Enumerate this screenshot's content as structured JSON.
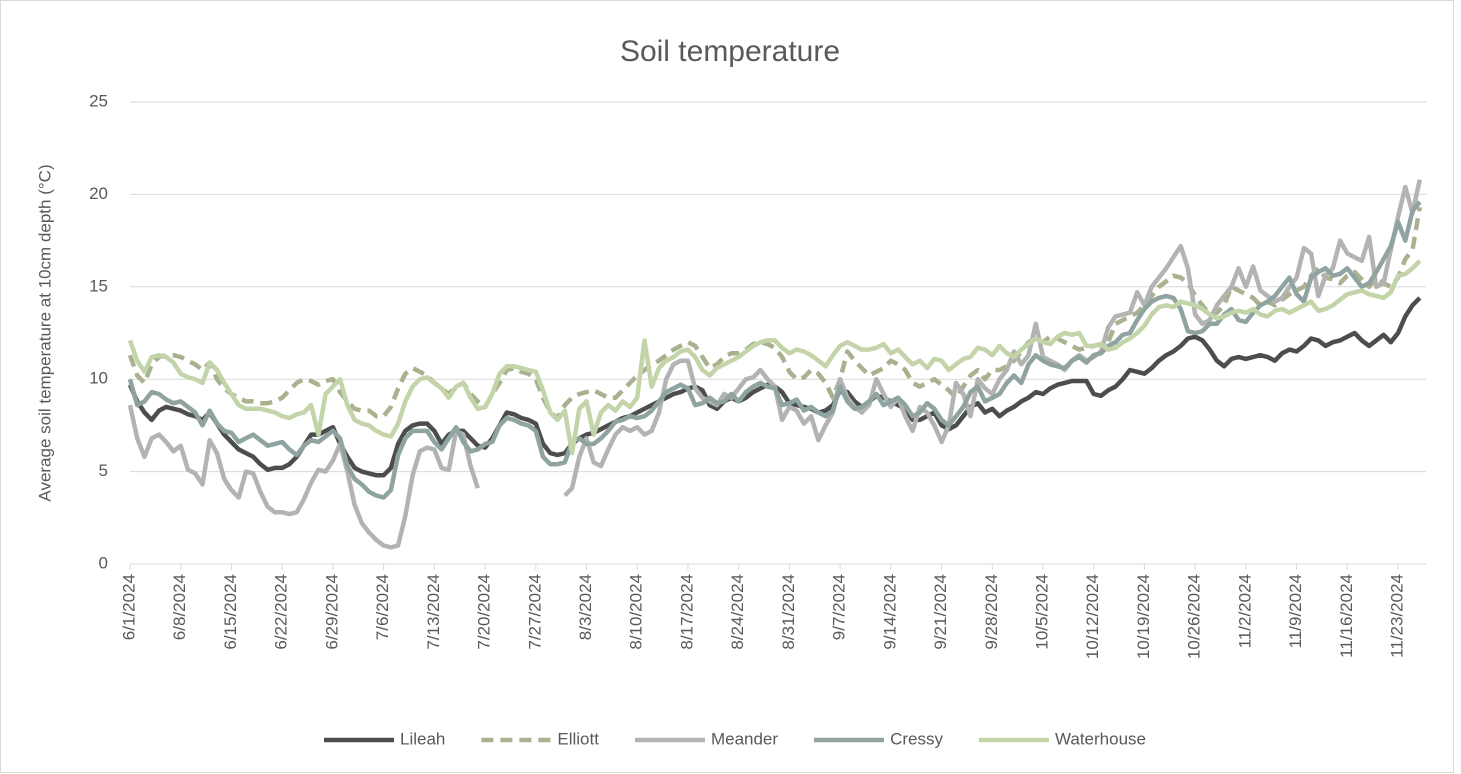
{
  "chart_data": {
    "type": "line",
    "title": "Soil temperature",
    "y_label": "Average soil temperature at 10cm depth (°C)",
    "ylim": [
      0,
      25
    ],
    "yticks": [
      0,
      5,
      10,
      15,
      20,
      25
    ],
    "grid": true,
    "legend": "bottom",
    "categories": [
      "6/1/2024",
      null,
      null,
      null,
      null,
      null,
      null,
      "6/8/2024",
      null,
      null,
      null,
      null,
      null,
      null,
      "6/15/2024",
      null,
      null,
      null,
      null,
      null,
      null,
      "6/22/2024",
      null,
      null,
      null,
      null,
      null,
      null,
      "6/29/2024",
      null,
      null,
      null,
      null,
      null,
      null,
      "7/6/2024",
      null,
      null,
      null,
      null,
      null,
      null,
      "7/13/2024",
      null,
      null,
      null,
      null,
      null,
      null,
      "7/20/2024",
      null,
      null,
      null,
      null,
      null,
      null,
      "7/27/2024",
      null,
      null,
      null,
      null,
      null,
      null,
      "8/3/2024",
      null,
      null,
      null,
      null,
      null,
      null,
      "8/10/2024",
      null,
      null,
      null,
      null,
      null,
      null,
      "8/17/2024",
      null,
      null,
      null,
      null,
      null,
      null,
      "8/24/2024",
      null,
      null,
      null,
      null,
      null,
      null,
      "8/31/2024",
      null,
      null,
      null,
      null,
      null,
      null,
      "9/7/2024",
      null,
      null,
      null,
      null,
      null,
      null,
      "9/14/2024",
      null,
      null,
      null,
      null,
      null,
      null,
      "9/21/2024",
      null,
      null,
      null,
      null,
      null,
      null,
      "9/28/2024",
      null,
      null,
      null,
      null,
      null,
      null,
      "10/5/2024",
      null,
      null,
      null,
      null,
      null,
      null,
      "10/12/2024",
      null,
      null,
      null,
      null,
      null,
      null,
      "10/19/2024",
      null,
      null,
      null,
      null,
      null,
      null,
      "10/26/2024",
      null,
      null,
      null,
      null,
      null,
      null,
      "11/2/2024",
      null,
      null,
      null,
      null,
      null,
      null,
      "11/9/2024",
      null,
      null,
      null,
      null,
      null,
      null,
      "11/16/2024",
      null,
      null,
      null,
      null,
      null,
      null,
      "11/23/2024",
      null,
      null,
      null
    ],
    "series": [
      {
        "name": "Lileah",
        "color": "#4d4d4d",
        "dashed": false,
        "values": [
          9.7,
          8.8,
          8.2,
          7.8,
          8.3,
          8.5,
          8.4,
          8.3,
          8.1,
          8.0,
          7.8,
          8.2,
          7.6,
          7.0,
          6.6,
          6.2,
          6.0,
          5.8,
          5.4,
          5.1,
          5.2,
          5.2,
          5.4,
          5.8,
          6.4,
          7.0,
          7.0,
          7.2,
          7.4,
          6.5,
          5.8,
          5.2,
          5.0,
          4.9,
          4.8,
          4.8,
          5.2,
          6.5,
          7.2,
          7.5,
          7.6,
          7.6,
          7.2,
          6.5,
          7.0,
          7.2,
          7.2,
          6.8,
          6.4,
          6.3,
          6.8,
          7.5,
          8.2,
          8.1,
          7.9,
          7.8,
          7.6,
          6.5,
          6.0,
          5.9,
          6.0,
          6.5,
          6.8,
          7.0,
          7.1,
          7.3,
          7.5,
          7.7,
          7.9,
          8.0,
          8.2,
          8.4,
          8.6,
          8.8,
          9.0,
          9.2,
          9.3,
          9.5,
          9.6,
          9.4,
          8.6,
          8.4,
          8.8,
          9.0,
          8.8,
          9.0,
          9.3,
          9.5,
          9.7,
          9.6,
          9.3,
          8.7,
          8.6,
          8.5,
          8.4,
          8.2,
          8.3,
          8.6,
          9.4,
          9.3,
          8.8,
          8.5,
          8.8,
          9.1,
          9.0,
          8.8,
          8.6,
          8.4,
          7.8,
          7.8,
          8.0,
          8.2,
          7.5,
          7.3,
          7.5,
          8.0,
          8.5,
          8.7,
          8.2,
          8.4,
          8.0,
          8.3,
          8.5,
          8.8,
          9.0,
          9.3,
          9.2,
          9.5,
          9.7,
          9.8,
          9.9,
          9.9,
          9.9,
          9.2,
          9.1,
          9.4,
          9.6,
          10.0,
          10.5,
          10.4,
          10.3,
          10.6,
          11.0,
          11.3,
          11.5,
          11.8,
          12.2,
          12.3,
          12.1,
          11.6,
          11.0,
          10.7,
          11.1,
          11.2,
          11.1,
          11.2,
          11.3,
          11.2,
          11.0,
          11.4,
          11.6,
          11.5,
          11.8,
          12.2,
          12.1,
          11.8,
          12.0,
          12.1,
          12.3,
          12.5,
          12.1,
          11.8,
          12.1,
          12.4,
          12.0,
          12.5,
          13.4,
          14.0,
          14.4
        ]
      },
      {
        "name": "Elliott",
        "color": "#a9b18f",
        "dashed": true,
        "values": [
          11.3,
          10.2,
          9.8,
          10.8,
          11.2,
          11.3,
          11.3,
          11.2,
          11.0,
          10.8,
          10.5,
          10.9,
          10.0,
          9.5,
          9.2,
          9.0,
          8.8,
          8.8,
          8.7,
          8.7,
          8.8,
          9.0,
          9.4,
          9.8,
          10.0,
          9.9,
          9.7,
          9.9,
          10.0,
          9.3,
          8.8,
          8.4,
          8.3,
          8.3,
          8.0,
          8.0,
          8.5,
          9.5,
          10.3,
          10.6,
          10.4,
          10.2,
          9.8,
          9.5,
          9.2,
          9.6,
          9.8,
          9.2,
          8.8,
          8.5,
          9.2,
          9.8,
          10.5,
          10.6,
          10.4,
          10.3,
          10.0,
          9.0,
          8.2,
          7.9,
          8.6,
          9.0,
          9.2,
          9.3,
          9.4,
          9.2,
          9.0,
          9.0,
          9.4,
          9.8,
          10.2,
          10.5,
          10.8,
          11.0,
          11.3,
          11.6,
          11.8,
          12.0,
          11.8,
          11.2,
          10.6,
          10.8,
          11.2,
          11.4,
          11.4,
          11.6,
          11.9,
          12.0,
          11.9,
          11.7,
          11.2,
          10.4,
          10.0,
          10.1,
          10.5,
          10.3,
          9.8,
          9.0,
          10.0,
          11.5,
          11.0,
          10.6,
          10.2,
          10.4,
          10.6,
          11.0,
          10.8,
          10.5,
          9.8,
          9.6,
          9.8,
          10.0,
          9.7,
          9.4,
          9.0,
          9.6,
          10.2,
          10.5,
          10.0,
          10.5,
          10.5,
          10.7,
          11.0,
          11.5,
          12.0,
          12.2,
          12.0,
          12.3,
          12.2,
          12.0,
          11.8,
          11.6,
          11.7,
          11.8,
          11.9,
          12.0,
          13.0,
          13.2,
          13.4,
          13.6,
          14.0,
          14.5,
          15.0,
          15.3,
          15.6,
          15.5,
          15.2,
          14.5,
          14.0,
          13.5,
          13.6,
          14.0,
          15.0,
          14.8,
          14.6,
          14.4,
          14.0,
          14.2,
          14.0,
          14.3,
          14.6,
          14.8,
          15.0,
          15.6,
          16.0,
          15.5,
          15.4,
          15.2,
          15.6,
          15.8,
          15.4,
          15.0,
          15.5,
          15.2,
          15.0,
          15.5,
          16.5,
          17.0,
          19.3
        ]
      },
      {
        "name": "Meander",
        "color": "#b3b3b3",
        "dashed": false,
        "values": [
          8.6,
          6.8,
          5.8,
          6.8,
          7.0,
          6.6,
          6.1,
          6.4,
          5.1,
          4.9,
          4.3,
          6.7,
          6.0,
          4.6,
          4.0,
          3.6,
          5.0,
          4.9,
          3.9,
          3.1,
          2.8,
          2.8,
          2.7,
          2.8,
          3.5,
          4.4,
          5.1,
          5.0,
          5.6,
          6.5,
          5.0,
          3.2,
          2.2,
          1.7,
          1.3,
          1.0,
          0.9,
          1.0,
          2.6,
          4.8,
          6.1,
          6.3,
          6.2,
          5.2,
          5.1,
          7.2,
          7.0,
          5.3,
          4.1,
          null,
          null,
          null,
          null,
          null,
          null,
          null,
          null,
          null,
          null,
          null,
          3.7,
          4.1,
          5.8,
          6.8,
          5.5,
          5.3,
          6.2,
          7.0,
          7.4,
          7.2,
          7.4,
          7.0,
          7.2,
          8.2,
          10.0,
          10.8,
          11.0,
          11.0,
          9.5,
          9.0,
          8.8,
          8.6,
          9.2,
          9.0,
          9.5,
          10.0,
          10.1,
          10.5,
          10.0,
          9.6,
          7.8,
          8.5,
          8.3,
          7.6,
          8.0,
          6.7,
          7.5,
          8.2,
          10.0,
          9.0,
          8.5,
          8.2,
          8.6,
          10.0,
          9.2,
          8.5,
          9.0,
          8.0,
          7.2,
          8.5,
          8.2,
          7.5,
          6.6,
          7.5,
          9.8,
          9.2,
          8.0,
          10.0,
          9.5,
          9.2,
          10.0,
          10.5,
          11.5,
          10.8,
          11.3,
          13.0,
          11.2,
          11.0,
          10.8,
          10.5,
          11.0,
          11.3,
          11.0,
          11.2,
          11.5,
          12.8,
          13.4,
          13.5,
          13.6,
          14.7,
          14.0,
          15.0,
          15.5,
          16.0,
          16.6,
          17.2,
          16.0,
          13.5,
          13.0,
          13.2,
          14.0,
          14.5,
          15.0,
          16.0,
          15.0,
          16.1,
          14.8,
          14.5,
          14.2,
          14.4,
          15.0,
          15.5,
          17.1,
          16.8,
          14.5,
          15.6,
          16.0,
          17.5,
          16.8,
          16.6,
          16.4,
          17.7,
          15.0,
          15.2,
          17.0,
          18.8,
          20.4,
          19.0,
          20.8
        ]
      },
      {
        "name": "Cressy",
        "color": "#8fa3a0",
        "dashed": false,
        "values": [
          10.0,
          8.6,
          8.8,
          9.3,
          9.2,
          8.9,
          8.7,
          8.8,
          8.5,
          8.2,
          7.5,
          8.3,
          7.6,
          7.2,
          7.1,
          6.6,
          6.8,
          7.0,
          6.7,
          6.4,
          6.5,
          6.6,
          6.2,
          5.9,
          6.4,
          6.7,
          6.6,
          6.9,
          7.2,
          6.8,
          5.3,
          4.6,
          4.3,
          3.9,
          3.7,
          3.6,
          4.0,
          5.9,
          6.8,
          7.2,
          7.2,
          7.2,
          6.6,
          6.2,
          6.8,
          7.4,
          6.6,
          6.1,
          6.2,
          6.5,
          6.6,
          7.5,
          7.9,
          7.8,
          7.6,
          7.5,
          7.2,
          5.8,
          5.4,
          5.4,
          5.5,
          6.6,
          6.8,
          6.5,
          6.5,
          6.8,
          7.2,
          7.7,
          7.8,
          8.0,
          7.9,
          8.0,
          8.3,
          8.8,
          9.3,
          9.5,
          9.7,
          9.5,
          8.6,
          8.7,
          9.0,
          8.7,
          8.8,
          9.2,
          8.8,
          9.3,
          9.6,
          9.8,
          9.6,
          9.5,
          8.6,
          8.7,
          8.9,
          8.3,
          8.5,
          8.2,
          8.0,
          8.3,
          9.6,
          8.8,
          8.4,
          8.5,
          8.8,
          9.2,
          8.6,
          8.8,
          9.0,
          8.6,
          8.0,
          8.2,
          8.7,
          8.4,
          7.8,
          7.5,
          8.0,
          8.5,
          9.3,
          9.6,
          8.8,
          9.0,
          9.2,
          9.8,
          10.2,
          9.8,
          10.8,
          11.3,
          11.0,
          10.8,
          10.7,
          10.6,
          11.0,
          11.2,
          10.9,
          11.3,
          11.4,
          11.8,
          12.0,
          12.4,
          12.5,
          13.2,
          13.8,
          14.2,
          14.4,
          14.5,
          14.4,
          13.8,
          12.6,
          12.5,
          12.6,
          13.0,
          13.0,
          13.5,
          13.8,
          13.2,
          13.1,
          13.6,
          14.0,
          14.2,
          14.5,
          15.0,
          15.5,
          14.6,
          14.2,
          15.5,
          15.8,
          16.0,
          15.6,
          15.7,
          16.0,
          15.5,
          15.0,
          15.2,
          15.8,
          16.5,
          17.2,
          18.5,
          17.5,
          19.1,
          19.6
        ]
      },
      {
        "name": "Waterhouse",
        "color": "#c2d4a8",
        "dashed": false,
        "values": [
          12.1,
          11.0,
          10.4,
          11.2,
          11.3,
          11.2,
          10.9,
          10.3,
          10.1,
          10.0,
          9.8,
          10.9,
          10.5,
          9.8,
          9.2,
          8.6,
          8.4,
          8.4,
          8.4,
          8.3,
          8.2,
          8.0,
          7.9,
          8.1,
          8.2,
          8.6,
          7.0,
          9.2,
          9.6,
          10.0,
          8.6,
          7.8,
          7.6,
          7.5,
          7.2,
          7.0,
          6.9,
          7.6,
          8.8,
          9.6,
          10.0,
          10.1,
          9.8,
          9.5,
          9.0,
          9.6,
          9.8,
          9.0,
          8.4,
          8.5,
          9.2,
          10.3,
          10.7,
          10.7,
          10.6,
          10.5,
          10.4,
          9.4,
          8.2,
          7.8,
          8.3,
          6.0,
          8.4,
          8.8,
          7.0,
          8.2,
          8.6,
          8.3,
          8.8,
          8.5,
          9.0,
          12.1,
          9.6,
          10.6,
          11.0,
          11.2,
          11.5,
          11.6,
          11.2,
          10.5,
          10.2,
          10.6,
          10.8,
          11.0,
          11.2,
          11.5,
          11.8,
          12.0,
          12.1,
          12.1,
          11.7,
          11.4,
          11.6,
          11.5,
          11.3,
          11.0,
          10.7,
          11.3,
          11.8,
          12.0,
          11.8,
          11.6,
          11.6,
          11.7,
          11.9,
          11.4,
          11.6,
          11.2,
          10.8,
          11.0,
          10.6,
          11.1,
          11.0,
          10.5,
          10.8,
          11.1,
          11.2,
          11.7,
          11.6,
          11.3,
          11.8,
          11.4,
          11.2,
          11.6,
          11.9,
          12.2,
          12.0,
          11.9,
          12.3,
          12.5,
          12.4,
          12.5,
          11.8,
          11.8,
          11.9,
          11.6,
          11.7,
          12.0,
          12.2,
          12.5,
          12.9,
          13.5,
          13.9,
          14.0,
          13.9,
          14.2,
          14.1,
          14.0,
          13.8,
          13.5,
          13.3,
          13.4,
          13.6,
          13.7,
          13.6,
          13.8,
          13.5,
          13.4,
          13.7,
          13.8,
          13.6,
          13.8,
          14.0,
          14.2,
          13.7,
          13.8,
          14.0,
          14.3,
          14.6,
          14.7,
          14.8,
          14.6,
          14.5,
          14.4,
          14.7,
          15.6,
          15.7,
          16.0,
          16.4
        ]
      }
    ]
  }
}
